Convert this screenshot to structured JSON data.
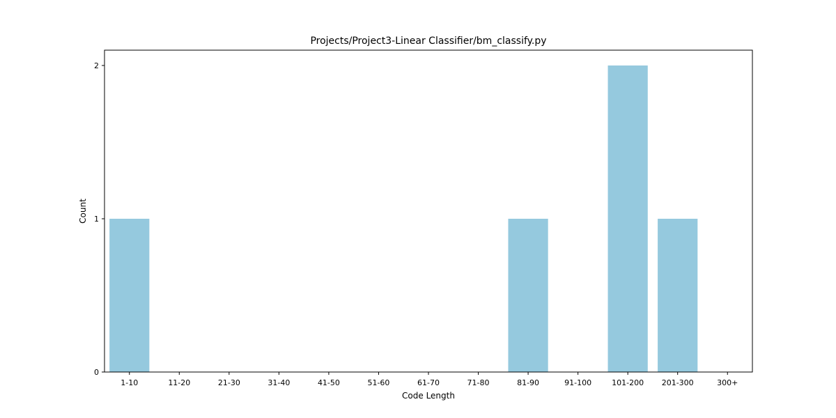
{
  "chart_data": {
    "type": "bar",
    "title": "Projects/Project3-Linear Classifier/bm_classify.py",
    "xlabel": "Code Length",
    "ylabel": "Count",
    "categories": [
      "1-10",
      "11-20",
      "21-30",
      "31-40",
      "41-50",
      "51-60",
      "61-70",
      "71-80",
      "81-90",
      "91-100",
      "101-200",
      "201-300",
      "300+"
    ],
    "values": [
      1,
      0,
      0,
      0,
      0,
      0,
      0,
      0,
      1,
      0,
      2,
      1,
      0
    ],
    "ylim": [
      0,
      2.1
    ],
    "yticks": [
      "0",
      "1",
      "2"
    ],
    "bar_color": "#95c9de",
    "grid": false,
    "legend": "none"
  }
}
